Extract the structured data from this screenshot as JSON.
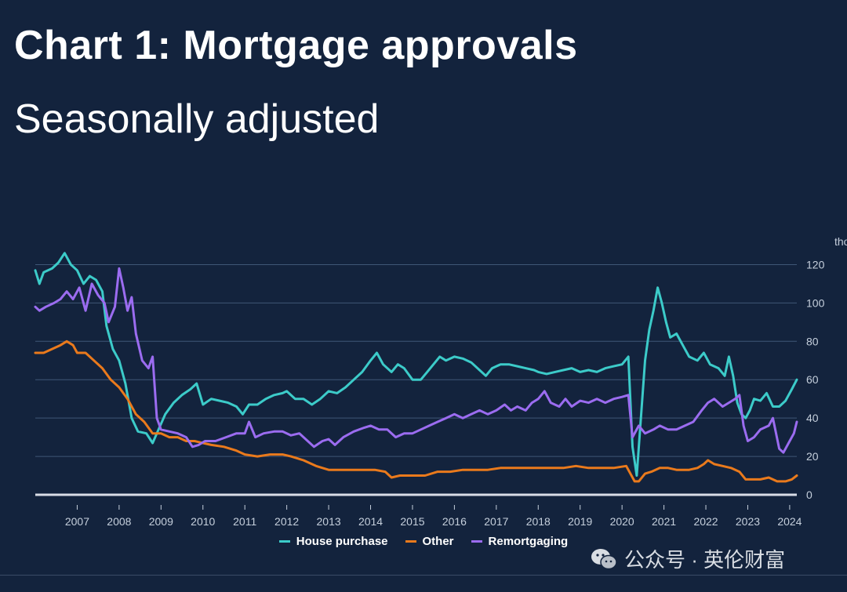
{
  "title": "Chart 1: Mortgage approvals",
  "subtitle": "Seasonally adjusted",
  "unit_label": "thousands",
  "watermark": "公众号 · 英伦财富",
  "colors": {
    "background": "#13233d",
    "House purchase": "#3ccbc9",
    "Other": "#ea7a1c",
    "Remortgaging": "#9b6cf0",
    "grid": "#3f5676",
    "zero_line": "#d8dde6",
    "axis_text": "#c5cfdc"
  },
  "chart_data": {
    "type": "line",
    "title": "Chart 1: Mortgage approvals",
    "subtitle": "Seasonally adjusted",
    "xlabel": "",
    "ylabel": "",
    "ylim": [
      0,
      130
    ],
    "xlim": [
      2006.0,
      2024.17
    ],
    "yticks": [
      0,
      20,
      40,
      60,
      80,
      100,
      120
    ],
    "xticks": [
      2007,
      2008,
      2009,
      2010,
      2011,
      2012,
      2013,
      2014,
      2015,
      2016,
      2017,
      2018,
      2019,
      2020,
      2021,
      2022,
      2023,
      2024
    ],
    "grid": true,
    "legend": "bottom",
    "series": [
      {
        "name": "House purchase",
        "points": [
          [
            2006.0,
            117
          ],
          [
            2006.1,
            110
          ],
          [
            2006.2,
            116
          ],
          [
            2006.4,
            118
          ],
          [
            2006.55,
            121
          ],
          [
            2006.7,
            126
          ],
          [
            2006.85,
            120
          ],
          [
            2007.0,
            117
          ],
          [
            2007.15,
            110
          ],
          [
            2007.3,
            114
          ],
          [
            2007.45,
            112
          ],
          [
            2007.6,
            106
          ],
          [
            2007.7,
            88
          ],
          [
            2007.85,
            76
          ],
          [
            2008.0,
            70
          ],
          [
            2008.15,
            58
          ],
          [
            2008.3,
            40
          ],
          [
            2008.45,
            33
          ],
          [
            2008.65,
            32
          ],
          [
            2008.8,
            27
          ],
          [
            2008.9,
            32
          ],
          [
            2009.1,
            42
          ],
          [
            2009.3,
            48
          ],
          [
            2009.5,
            52
          ],
          [
            2009.7,
            55
          ],
          [
            2009.85,
            58
          ],
          [
            2010.0,
            47
          ],
          [
            2010.2,
            50
          ],
          [
            2010.4,
            49
          ],
          [
            2010.6,
            48
          ],
          [
            2010.8,
            46
          ],
          [
            2010.95,
            42
          ],
          [
            2011.1,
            47
          ],
          [
            2011.3,
            47
          ],
          [
            2011.5,
            50
          ],
          [
            2011.7,
            52
          ],
          [
            2011.9,
            53
          ],
          [
            2012.0,
            54
          ],
          [
            2012.2,
            50
          ],
          [
            2012.4,
            50
          ],
          [
            2012.6,
            47
          ],
          [
            2012.8,
            50
          ],
          [
            2013.0,
            54
          ],
          [
            2013.2,
            53
          ],
          [
            2013.4,
            56
          ],
          [
            2013.6,
            60
          ],
          [
            2013.8,
            64
          ],
          [
            2014.0,
            70
          ],
          [
            2014.15,
            74
          ],
          [
            2014.3,
            68
          ],
          [
            2014.5,
            64
          ],
          [
            2014.65,
            68
          ],
          [
            2014.8,
            66
          ],
          [
            2015.0,
            60
          ],
          [
            2015.2,
            60
          ],
          [
            2015.35,
            64
          ],
          [
            2015.5,
            68
          ],
          [
            2015.65,
            72
          ],
          [
            2015.8,
            70
          ],
          [
            2016.0,
            72
          ],
          [
            2016.2,
            71
          ],
          [
            2016.4,
            69
          ],
          [
            2016.6,
            65
          ],
          [
            2016.75,
            62
          ],
          [
            2016.9,
            66
          ],
          [
            2017.1,
            68
          ],
          [
            2017.3,
            68
          ],
          [
            2017.5,
            67
          ],
          [
            2017.7,
            66
          ],
          [
            2017.9,
            65
          ],
          [
            2018.0,
            64
          ],
          [
            2018.2,
            63
          ],
          [
            2018.4,
            64
          ],
          [
            2018.6,
            65
          ],
          [
            2018.8,
            66
          ],
          [
            2019.0,
            64
          ],
          [
            2019.2,
            65
          ],
          [
            2019.4,
            64
          ],
          [
            2019.6,
            66
          ],
          [
            2019.8,
            67
          ],
          [
            2020.0,
            68
          ],
          [
            2020.15,
            72
          ],
          [
            2020.25,
            25
          ],
          [
            2020.35,
            10
          ],
          [
            2020.45,
            40
          ],
          [
            2020.55,
            70
          ],
          [
            2020.65,
            86
          ],
          [
            2020.75,
            96
          ],
          [
            2020.85,
            108
          ],
          [
            2020.95,
            100
          ],
          [
            2021.05,
            90
          ],
          [
            2021.15,
            82
          ],
          [
            2021.3,
            84
          ],
          [
            2021.45,
            78
          ],
          [
            2021.6,
            72
          ],
          [
            2021.8,
            70
          ],
          [
            2021.95,
            74
          ],
          [
            2022.1,
            68
          ],
          [
            2022.3,
            66
          ],
          [
            2022.45,
            62
          ],
          [
            2022.55,
            72
          ],
          [
            2022.65,
            62
          ],
          [
            2022.75,
            48
          ],
          [
            2022.85,
            42
          ],
          [
            2022.95,
            40
          ],
          [
            2023.05,
            44
          ],
          [
            2023.15,
            50
          ],
          [
            2023.3,
            49
          ],
          [
            2023.45,
            53
          ],
          [
            2023.6,
            46
          ],
          [
            2023.75,
            46
          ],
          [
            2023.9,
            49
          ],
          [
            2024.05,
            55
          ],
          [
            2024.17,
            60
          ]
        ]
      },
      {
        "name": "Other",
        "points": [
          [
            2006.0,
            74
          ],
          [
            2006.2,
            74
          ],
          [
            2006.4,
            76
          ],
          [
            2006.6,
            78
          ],
          [
            2006.75,
            80
          ],
          [
            2006.9,
            78
          ],
          [
            2007.0,
            74
          ],
          [
            2007.2,
            74
          ],
          [
            2007.4,
            70
          ],
          [
            2007.6,
            66
          ],
          [
            2007.8,
            60
          ],
          [
            2008.0,
            56
          ],
          [
            2008.2,
            50
          ],
          [
            2008.4,
            42
          ],
          [
            2008.6,
            38
          ],
          [
            2008.8,
            32
          ],
          [
            2009.0,
            32
          ],
          [
            2009.2,
            30
          ],
          [
            2009.4,
            30
          ],
          [
            2009.6,
            28
          ],
          [
            2009.8,
            28
          ],
          [
            2010.0,
            27
          ],
          [
            2010.2,
            26
          ],
          [
            2010.5,
            25
          ],
          [
            2010.8,
            23
          ],
          [
            2011.0,
            21
          ],
          [
            2011.3,
            20
          ],
          [
            2011.6,
            21
          ],
          [
            2011.9,
            21
          ],
          [
            2012.1,
            20
          ],
          [
            2012.4,
            18
          ],
          [
            2012.7,
            15
          ],
          [
            2013.0,
            13
          ],
          [
            2013.3,
            13
          ],
          [
            2013.6,
            13
          ],
          [
            2013.9,
            13
          ],
          [
            2014.1,
            13
          ],
          [
            2014.35,
            12
          ],
          [
            2014.5,
            9
          ],
          [
            2014.7,
            10
          ],
          [
            2015.0,
            10
          ],
          [
            2015.3,
            10
          ],
          [
            2015.6,
            12
          ],
          [
            2015.9,
            12
          ],
          [
            2016.2,
            13
          ],
          [
            2016.5,
            13
          ],
          [
            2016.8,
            13
          ],
          [
            2017.1,
            14
          ],
          [
            2017.4,
            14
          ],
          [
            2017.7,
            14
          ],
          [
            2018.0,
            14
          ],
          [
            2018.3,
            14
          ],
          [
            2018.6,
            14
          ],
          [
            2018.9,
            15
          ],
          [
            2019.2,
            14
          ],
          [
            2019.5,
            14
          ],
          [
            2019.8,
            14
          ],
          [
            2020.1,
            15
          ],
          [
            2020.3,
            7
          ],
          [
            2020.4,
            7
          ],
          [
            2020.55,
            11
          ],
          [
            2020.7,
            12
          ],
          [
            2020.9,
            14
          ],
          [
            2021.1,
            14
          ],
          [
            2021.3,
            13
          ],
          [
            2021.6,
            13
          ],
          [
            2021.8,
            14
          ],
          [
            2021.95,
            16
          ],
          [
            2022.05,
            18
          ],
          [
            2022.2,
            16
          ],
          [
            2022.4,
            15
          ],
          [
            2022.6,
            14
          ],
          [
            2022.8,
            12
          ],
          [
            2022.95,
            8
          ],
          [
            2023.1,
            8
          ],
          [
            2023.3,
            8
          ],
          [
            2023.5,
            9
          ],
          [
            2023.7,
            7
          ],
          [
            2023.9,
            7
          ],
          [
            2024.05,
            8
          ],
          [
            2024.17,
            10
          ]
        ]
      },
      {
        "name": "Remortgaging",
        "points": [
          [
            2006.0,
            98
          ],
          [
            2006.1,
            96
          ],
          [
            2006.25,
            98
          ],
          [
            2006.45,
            100
          ],
          [
            2006.6,
            102
          ],
          [
            2006.75,
            106
          ],
          [
            2006.9,
            102
          ],
          [
            2007.05,
            108
          ],
          [
            2007.2,
            96
          ],
          [
            2007.35,
            110
          ],
          [
            2007.5,
            104
          ],
          [
            2007.65,
            100
          ],
          [
            2007.75,
            90
          ],
          [
            2007.9,
            98
          ],
          [
            2008.0,
            118
          ],
          [
            2008.1,
            108
          ],
          [
            2008.2,
            96
          ],
          [
            2008.3,
            103
          ],
          [
            2008.4,
            84
          ],
          [
            2008.55,
            70
          ],
          [
            2008.7,
            66
          ],
          [
            2008.8,
            72
          ],
          [
            2008.9,
            40
          ],
          [
            2009.0,
            34
          ],
          [
            2009.2,
            33
          ],
          [
            2009.4,
            32
          ],
          [
            2009.6,
            30
          ],
          [
            2009.75,
            25
          ],
          [
            2009.9,
            26
          ],
          [
            2010.05,
            28
          ],
          [
            2010.3,
            28
          ],
          [
            2010.55,
            30
          ],
          [
            2010.8,
            32
          ],
          [
            2011.0,
            32
          ],
          [
            2011.1,
            38
          ],
          [
            2011.25,
            30
          ],
          [
            2011.45,
            32
          ],
          [
            2011.7,
            33
          ],
          [
            2011.9,
            33
          ],
          [
            2012.1,
            31
          ],
          [
            2012.3,
            32
          ],
          [
            2012.5,
            28
          ],
          [
            2012.65,
            25
          ],
          [
            2012.85,
            28
          ],
          [
            2013.0,
            29
          ],
          [
            2013.15,
            26
          ],
          [
            2013.35,
            30
          ],
          [
            2013.6,
            33
          ],
          [
            2013.85,
            35
          ],
          [
            2014.0,
            36
          ],
          [
            2014.2,
            34
          ],
          [
            2014.4,
            34
          ],
          [
            2014.6,
            30
          ],
          [
            2014.8,
            32
          ],
          [
            2015.0,
            32
          ],
          [
            2015.2,
            34
          ],
          [
            2015.4,
            36
          ],
          [
            2015.6,
            38
          ],
          [
            2015.8,
            40
          ],
          [
            2016.0,
            42
          ],
          [
            2016.2,
            40
          ],
          [
            2016.4,
            42
          ],
          [
            2016.6,
            44
          ],
          [
            2016.8,
            42
          ],
          [
            2017.0,
            44
          ],
          [
            2017.2,
            47
          ],
          [
            2017.35,
            44
          ],
          [
            2017.5,
            46
          ],
          [
            2017.7,
            44
          ],
          [
            2017.85,
            48
          ],
          [
            2018.0,
            50
          ],
          [
            2018.15,
            54
          ],
          [
            2018.3,
            48
          ],
          [
            2018.5,
            46
          ],
          [
            2018.65,
            50
          ],
          [
            2018.8,
            46
          ],
          [
            2019.0,
            49
          ],
          [
            2019.2,
            48
          ],
          [
            2019.4,
            50
          ],
          [
            2019.6,
            48
          ],
          [
            2019.8,
            50
          ],
          [
            2020.0,
            51
          ],
          [
            2020.15,
            52
          ],
          [
            2020.25,
            30
          ],
          [
            2020.4,
            36
          ],
          [
            2020.55,
            32
          ],
          [
            2020.75,
            34
          ],
          [
            2020.9,
            36
          ],
          [
            2021.1,
            34
          ],
          [
            2021.3,
            34
          ],
          [
            2021.5,
            36
          ],
          [
            2021.7,
            38
          ],
          [
            2021.9,
            44
          ],
          [
            2022.05,
            48
          ],
          [
            2022.2,
            50
          ],
          [
            2022.4,
            46
          ],
          [
            2022.55,
            48
          ],
          [
            2022.7,
            50
          ],
          [
            2022.8,
            52
          ],
          [
            2022.9,
            36
          ],
          [
            2023.0,
            28
          ],
          [
            2023.15,
            30
          ],
          [
            2023.3,
            34
          ],
          [
            2023.5,
            36
          ],
          [
            2023.6,
            40
          ],
          [
            2023.75,
            24
          ],
          [
            2023.85,
            22
          ],
          [
            2024.0,
            28
          ],
          [
            2024.1,
            32
          ],
          [
            2024.17,
            38
          ]
        ]
      }
    ]
  }
}
